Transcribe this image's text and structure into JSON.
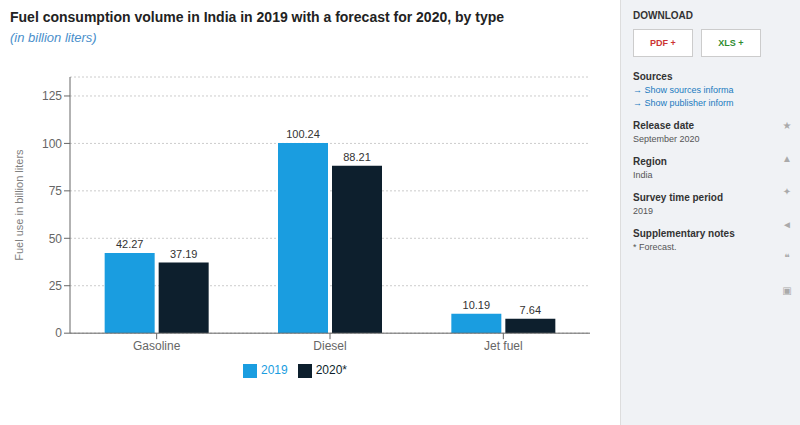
{
  "chart_data": {
    "type": "bar",
    "title": "Fuel consumption volume in India in 2019 with a forecast for 2020, by type",
    "subtitle": "(in billion liters)",
    "ylabel": "Fuel use in billion liters",
    "categories": [
      "Gasoline",
      "Diesel",
      "Jet fuel"
    ],
    "series": [
      {
        "name": "2019",
        "color": "#1a9de0",
        "values": [
          42.27,
          100.24,
          10.19
        ]
      },
      {
        "name": "2020*",
        "color": "#0d1f2d",
        "values": [
          37.19,
          88.21,
          7.64
        ]
      }
    ],
    "ylim": [
      0,
      135
    ],
    "yticks": [
      0,
      25,
      50,
      75,
      100,
      125
    ],
    "grid": true,
    "legend": "bottom",
    "data_labels": true,
    "annotations": [
      "DOWNLOAD",
      "PDF +",
      "XLS +",
      "Sources",
      "→ Show sources informa",
      "→ Show publisher inform",
      "Release date",
      "September 2020",
      "Region",
      "India",
      "Survey time period",
      "2019",
      "Supplementary notes",
      "* Forecast.",
      "★",
      "▲",
      "✦",
      "◄",
      "❝",
      "▣"
    ]
  }
}
